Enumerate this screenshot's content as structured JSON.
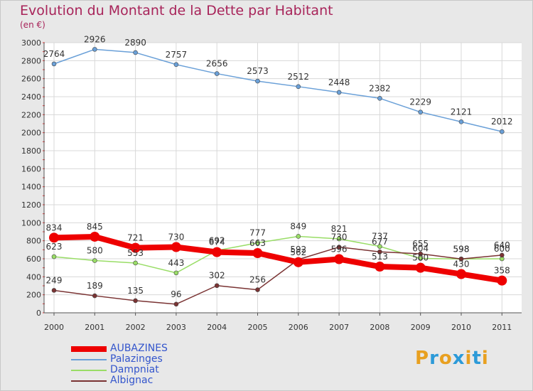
{
  "header": {
    "title": "Evolution du Montant de la Dette par Habitant",
    "subtitle": "(en €)"
  },
  "logo": {
    "text": "Proxiti",
    "letters": [
      "P",
      "r",
      "o",
      "x",
      "i",
      "t",
      "i"
    ],
    "colors": [
      "#e8a020",
      "#2c9ad8",
      "#e8a020",
      "#2c9ad8",
      "#e8a020",
      "#2c9ad8",
      "#e8a020"
    ]
  },
  "chart_data": {
    "type": "line",
    "title": "Evolution du Montant de la Dette par Habitant",
    "subtitle": "(en €)",
    "xlabel": "",
    "ylabel": "",
    "x": [
      "2000",
      "2001",
      "2002",
      "2003",
      "2004",
      "2005",
      "2006",
      "2007",
      "2008",
      "2009",
      "2010",
      "2011"
    ],
    "ylim": [
      0,
      3000
    ],
    "yticks": [
      0,
      200,
      400,
      600,
      800,
      1000,
      1200,
      1400,
      1600,
      1800,
      2000,
      2200,
      2400,
      2600,
      2800,
      3000
    ],
    "grid": true,
    "legend": "bottom-left",
    "series": [
      {
        "name": "AUBAZINES",
        "color": "#ee0000",
        "values": [
          834,
          845,
          721,
          730,
          674,
          663,
          562,
          596,
          513,
          500,
          430,
          358
        ]
      },
      {
        "name": "Palazinges",
        "color": "#6aa0d8",
        "values": [
          2764,
          2926,
          2890,
          2757,
          2656,
          2573,
          2512,
          2448,
          2382,
          2229,
          2121,
          2012
        ]
      },
      {
        "name": "Dampniat",
        "color": "#99dd66",
        "values": [
          623,
          580,
          553,
          443,
          692,
          777,
          849,
          821,
          737,
          604,
          598,
          600
        ]
      },
      {
        "name": "Albignac",
        "color": "#7a3333",
        "values": [
          249,
          189,
          135,
          96,
          302,
          256,
          592,
          730,
          677,
          655,
          598,
          640
        ]
      }
    ]
  }
}
